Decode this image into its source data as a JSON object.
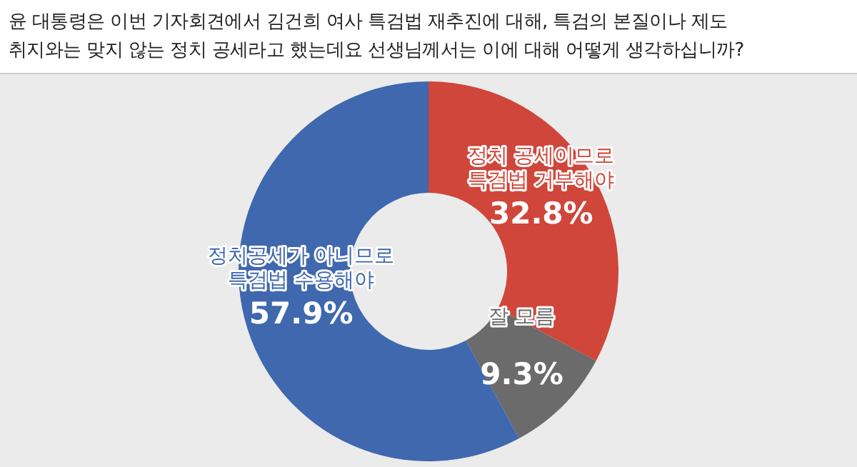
{
  "chart_data": {
    "type": "donut",
    "title": "윤 대통령은 이번 기자회견에서 김건희 여사 특검법 재추진에 대해, 특검의 본질이나 제도\n취지와는 맞지 않는 정치 공세라고 했는데요 선생님께서는 이에 대해 어떻게 생각하십니까?",
    "categories": [
      "정치 공세이므로\n특검법 거부해야",
      "잘 모름",
      "정치공세가 아니므로\n특검법 수용해야"
    ],
    "values": [
      32.8,
      9.3,
      57.9
    ],
    "colors": [
      "#d0463a",
      "#6b6b6b",
      "#3f68ae"
    ],
    "value_labels": [
      "32.8%",
      "9.3%",
      "57.9%"
    ]
  }
}
